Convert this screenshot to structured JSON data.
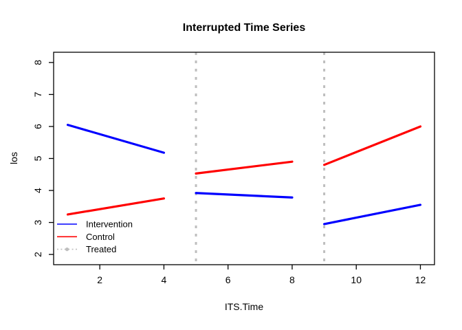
{
  "figure": {
    "title": "Interrupted Time Series",
    "xlabel": "ITS.Time",
    "ylabel": "los"
  },
  "colors": {
    "intervention": "#0000FF",
    "control": "#FF0000",
    "treated": "#BEBEBE",
    "axis": "#000000",
    "background": "#FFFFFF"
  },
  "chart_data": {
    "type": "line",
    "title": "Interrupted Time Series",
    "xlabel": "ITS.Time",
    "ylabel": "los",
    "xlim": [
      0.56,
      12.44
    ],
    "ylim": [
      1.68,
      8.32
    ],
    "xticks": [
      2,
      4,
      6,
      8,
      10,
      12
    ],
    "yticks": [
      2,
      3,
      4,
      5,
      6,
      7,
      8
    ],
    "grid": false,
    "legend_position": "bottom-left-inside",
    "series": [
      {
        "name": "Intervention",
        "color": "#0000FF",
        "style": "solid",
        "segments": [
          [
            [
              1,
              6.05
            ],
            [
              4,
              5.18
            ]
          ],
          [
            [
              5,
              3.92
            ],
            [
              8,
              3.78
            ]
          ],
          [
            [
              9,
              2.95
            ],
            [
              12,
              3.55
            ]
          ]
        ]
      },
      {
        "name": "Control",
        "color": "#FF0000",
        "style": "solid",
        "segments": [
          [
            [
              1,
              3.25
            ],
            [
              4,
              3.75
            ]
          ],
          [
            [
              5,
              4.53
            ],
            [
              8,
              4.9
            ]
          ],
          [
            [
              9,
              4.8
            ],
            [
              12,
              6.0
            ]
          ]
        ]
      }
    ],
    "vlines": {
      "name": "Treated",
      "color": "#BEBEBE",
      "style": "dotted",
      "x": [
        5,
        9
      ]
    },
    "legend": [
      {
        "label": "Intervention",
        "color": "#0000FF",
        "style": "solid"
      },
      {
        "label": "Control",
        "color": "#FF0000",
        "style": "solid"
      },
      {
        "label": "Treated",
        "color": "#BEBEBE",
        "style": "dotted-point"
      }
    ]
  }
}
